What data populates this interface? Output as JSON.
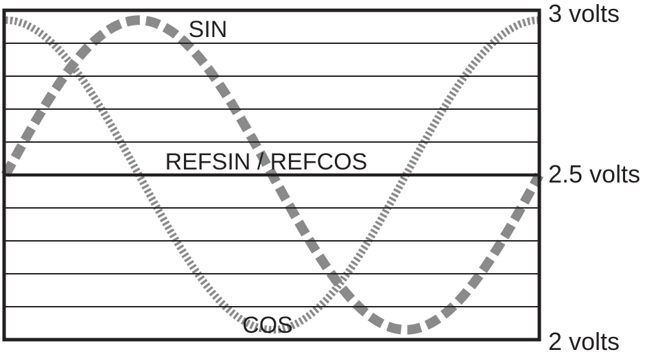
{
  "chart_data": {
    "type": "line",
    "title": "",
    "xlabel": "",
    "ylabel": "",
    "grid": "horizontal",
    "legend": "none",
    "y_axis": {
      "unit": "volts",
      "min": 2.0,
      "max": 3.0,
      "grid_step": 0.1,
      "labels": [
        {
          "text": "3 volts",
          "value": 3.0
        },
        {
          "text": "2.5 volts",
          "value": 2.5
        },
        {
          "text": "2 volts",
          "value": 2.0
        }
      ]
    },
    "reference_volts": 2.5,
    "periods_shown": 1,
    "series": [
      {
        "name": "SIN",
        "waveform": "sin",
        "offset_volts": 2.5,
        "amplitude_volts": 0.47,
        "phase_deg": 0,
        "style": "thick-dash",
        "color": "#8a8a8a"
      },
      {
        "name": "COS",
        "waveform": "cos",
        "offset_volts": 2.5,
        "amplitude_volts": 0.47,
        "phase_deg": 90,
        "style": "fine-dash",
        "color": "#8a8a8a"
      }
    ],
    "annotations": [
      {
        "text": "SIN"
      },
      {
        "text": "REFSIN / REFCOS"
      },
      {
        "text": "COS"
      }
    ]
  },
  "colors": {
    "ink": "#231f20",
    "wave": "#8a8a8a",
    "background": "#ffffff"
  }
}
